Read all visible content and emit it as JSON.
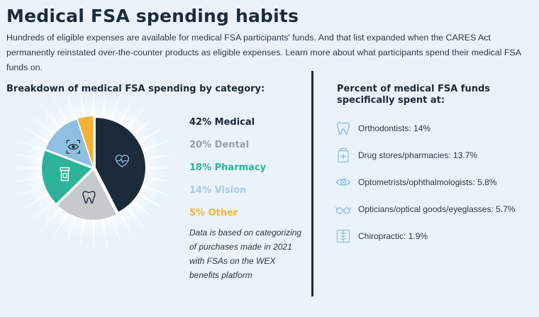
{
  "title": "Medical FSA spending habits",
  "intro": "Hundreds of eligible expenses are available for medical FSA participants' funds. And that list expanded when the CARES Act permanently reinstated over-the-counter products as eligible expenses. Learn more about what participants spend their medical FSA funds on.",
  "left_heading": "Breakdown of medical FSA spending by category:",
  "note": "Data is based on categorizing of purchases made in 2021 with FSAs on the WEX benefits platform",
  "right_heading": "Percent of medical FSA funds specifically spent at:",
  "chart_data": [
    {
      "type": "pie",
      "title": "Breakdown of medical FSA spending by category:",
      "slices": [
        {
          "label": "42% Medical",
          "value": 42,
          "color": "#1c2b39",
          "icon": "heart-pulse-icon"
        },
        {
          "label": "20% Dental",
          "value": 20,
          "color": "#c6cacd",
          "icon": "tooth-icon"
        },
        {
          "label": "18% Pharmacy",
          "value": 18,
          "color": "#2db39a",
          "icon": "pill-bottle-icon"
        },
        {
          "label": "14% Vision",
          "value": 14,
          "color": "#8fc0e2",
          "icon": "eye-scan-icon"
        },
        {
          "label": "5% Other",
          "value": 5,
          "color": "#f5b335",
          "icon": ""
        }
      ]
    },
    {
      "type": "table",
      "title": "Percent of medical FSA funds specifically spent at:",
      "rows": [
        {
          "label": "Orthodontists: 14%",
          "value": 14,
          "icon": "tooth-icon"
        },
        {
          "label": "Drug stores/pharmacies: 13.7%",
          "value": 13.7,
          "icon": "pharmacy-bottle-icon"
        },
        {
          "label": "Optometrists/ophthalmologists: 5.8%",
          "value": 5.8,
          "icon": "eye-icon"
        },
        {
          "label": "Opticians/optical goods/eyeglasses: 5.7%",
          "value": 5.7,
          "icon": "eyeglasses-icon"
        },
        {
          "label": "Chiropractic: 1.9%",
          "value": 1.9,
          "icon": "spine-icon"
        }
      ]
    }
  ]
}
